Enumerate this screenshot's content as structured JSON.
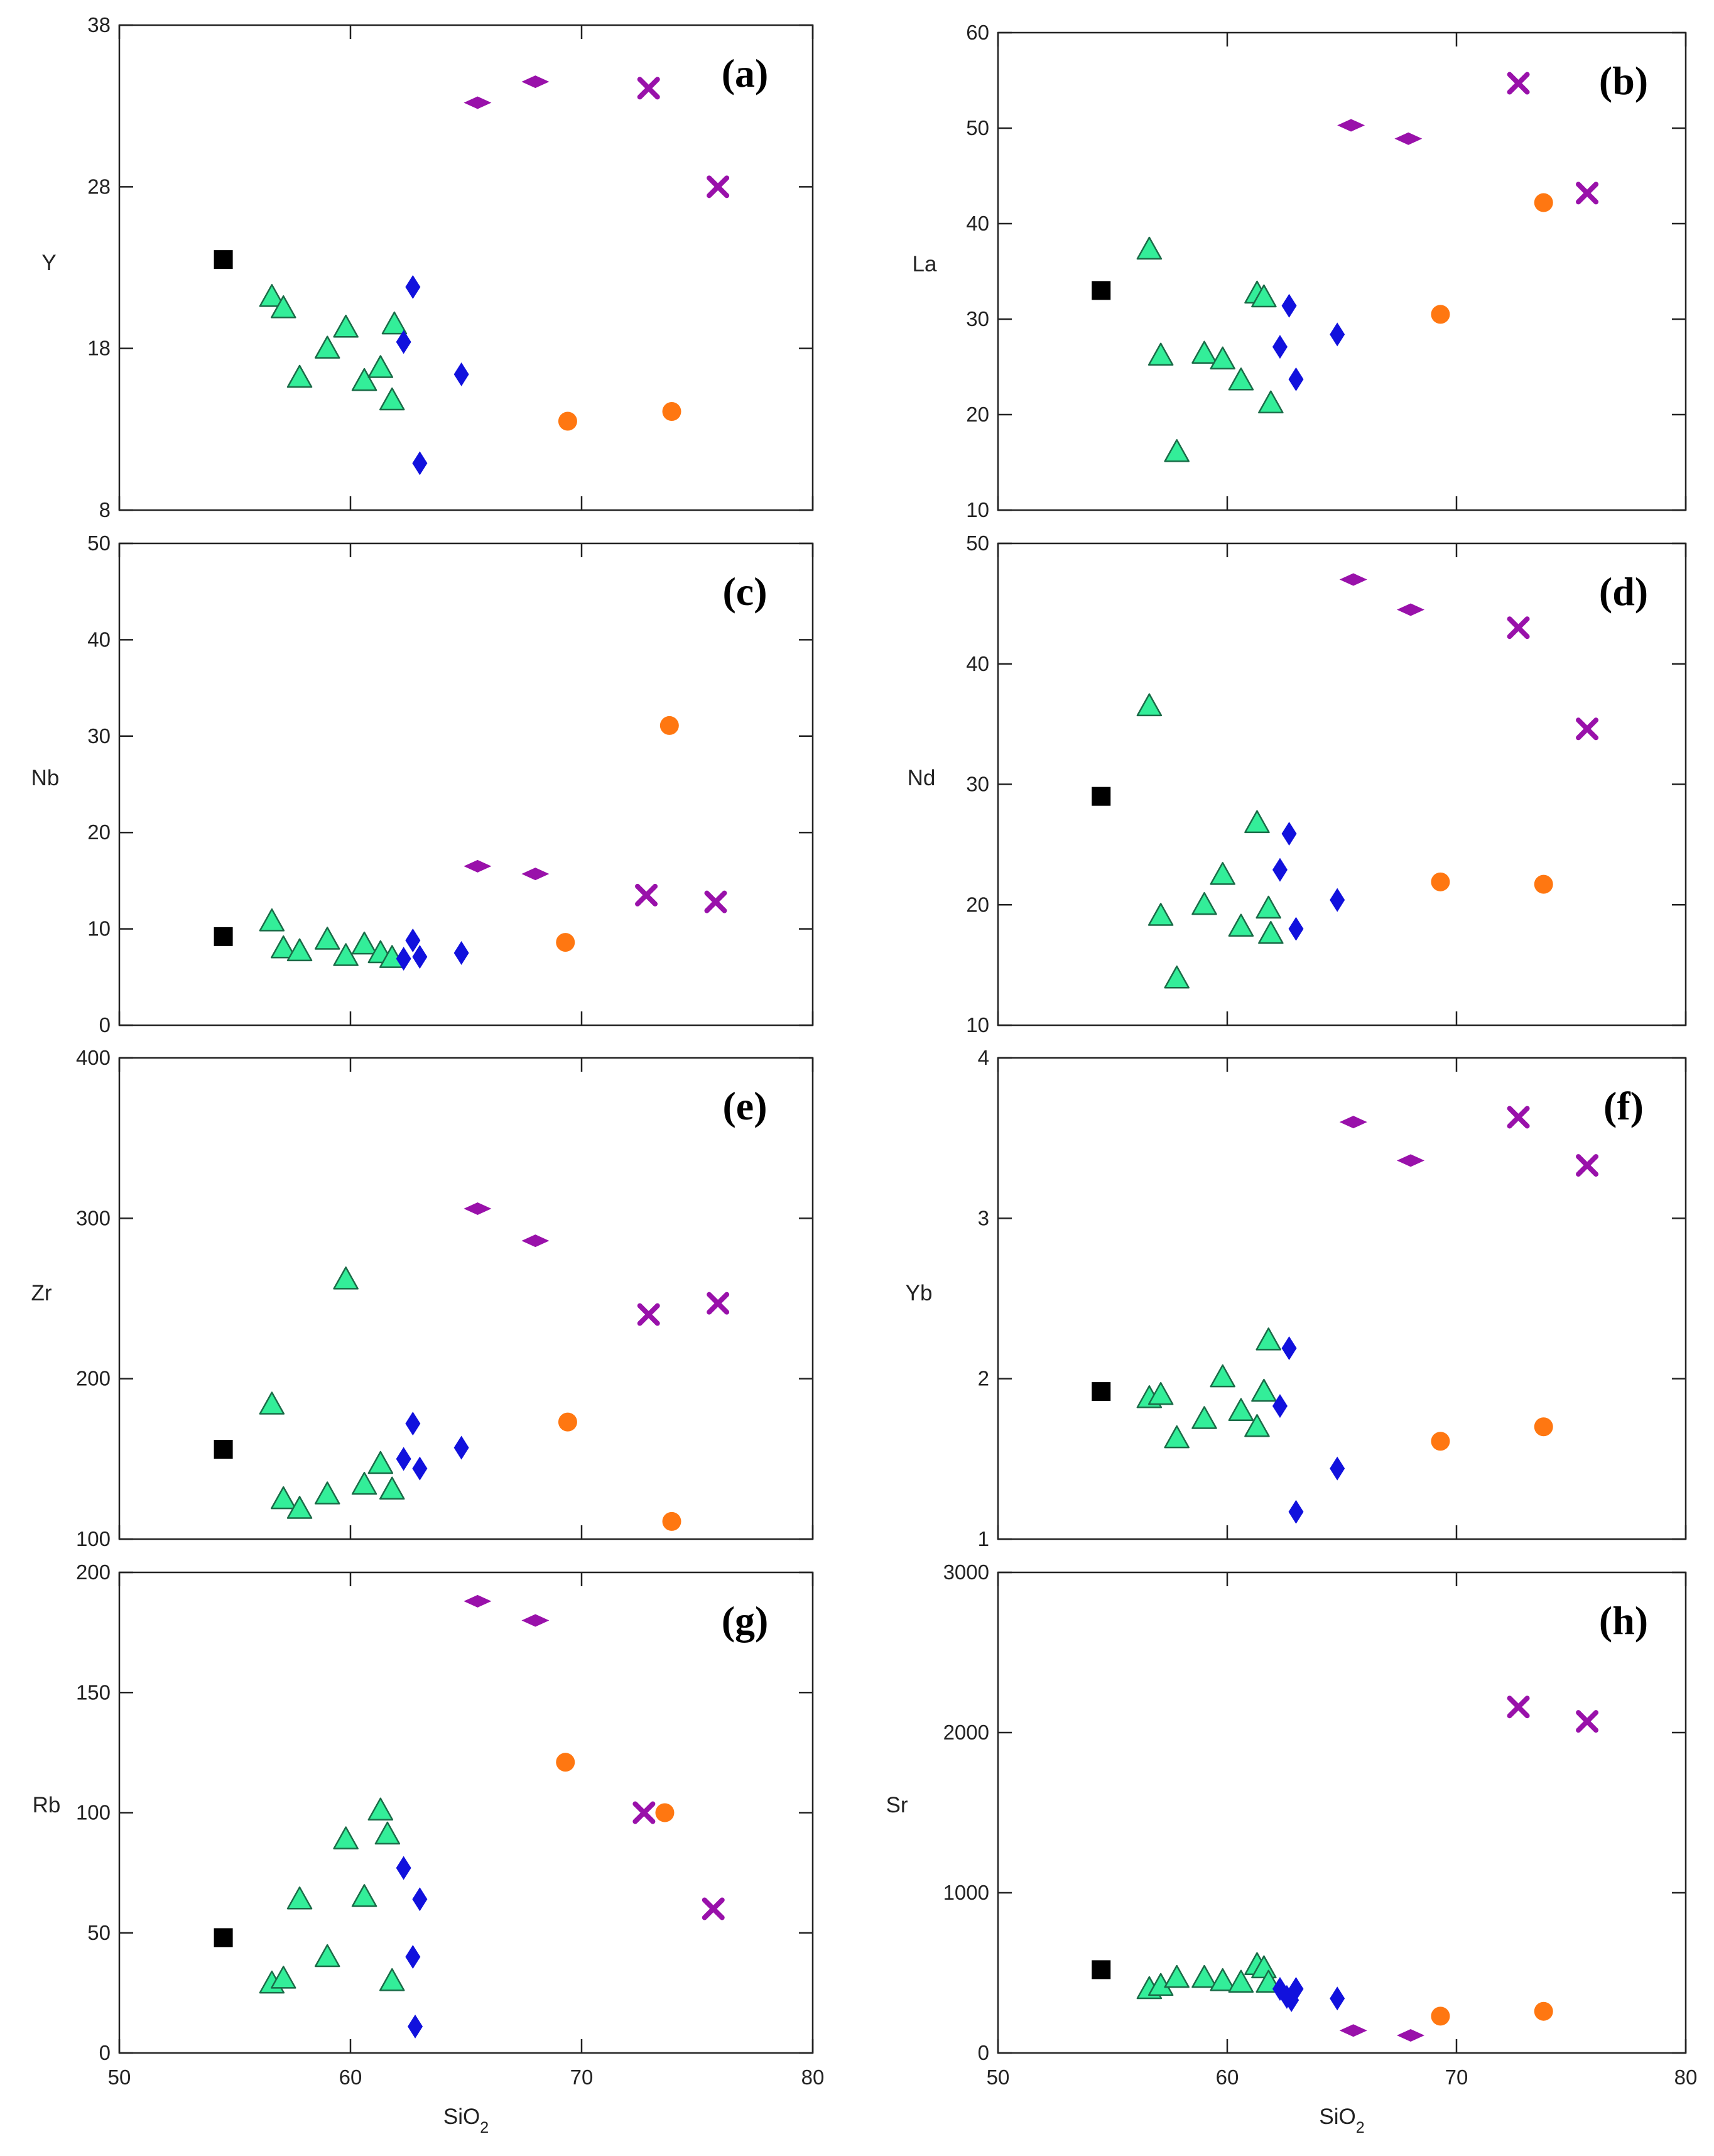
{
  "figure": {
    "description_labels": [
      "(a)",
      "(b)",
      "(c)",
      "(d)",
      "(e)",
      "(f)",
      "(g)",
      "(h)"
    ]
  },
  "colors": {
    "square": "#000000",
    "triangle": "#33ee99",
    "diamond_blue": "#1111dd",
    "circle": "#ff7711",
    "diamond_purple": "#9911aa",
    "cross": "#9911aa"
  },
  "chart_data": [
    {
      "type": "scatter",
      "panel": "(a)",
      "xlabel": "",
      "ylabel": "Y",
      "xlim": [
        50,
        80
      ],
      "ylim": [
        8,
        38
      ],
      "xticks": [],
      "yticks": [
        8,
        18,
        28,
        38
      ],
      "series": [
        {
          "name": "square",
          "points": [
            [
              54.5,
              23.5
            ]
          ]
        },
        {
          "name": "triangle",
          "points": [
            [
              56.6,
              21.2
            ],
            [
              57.1,
              20.5
            ],
            [
              57.8,
              16.2
            ],
            [
              59.0,
              18.0
            ],
            [
              59.8,
              19.3
            ],
            [
              60.6,
              16.0
            ],
            [
              61.3,
              16.8
            ],
            [
              61.8,
              14.8
            ],
            [
              61.9,
              19.5
            ]
          ]
        },
        {
          "name": "diamond_blue",
          "points": [
            [
              62.3,
              18.4
            ],
            [
              62.7,
              21.8
            ],
            [
              63.0,
              10.9
            ],
            [
              64.8,
              16.4
            ]
          ]
        },
        {
          "name": "circle",
          "points": [
            [
              69.4,
              13.5
            ],
            [
              73.9,
              14.1
            ]
          ]
        },
        {
          "name": "diamond_purple",
          "points": [
            [
              65.5,
              33.2
            ],
            [
              68.0,
              34.5
            ]
          ]
        },
        {
          "name": "cross",
          "points": [
            [
              72.9,
              34.1
            ],
            [
              75.9,
              28.0
            ]
          ]
        }
      ]
    },
    {
      "type": "scatter",
      "panel": "(b)",
      "xlabel": "",
      "ylabel": "La",
      "xlim": [
        50,
        80
      ],
      "ylim": [
        10,
        60
      ],
      "xticks": [],
      "yticks": [
        10,
        20,
        30,
        40,
        50,
        60
      ],
      "series": [
        {
          "name": "square",
          "points": [
            [
              54.5,
              33.0
            ]
          ]
        },
        {
          "name": "triangle",
          "points": [
            [
              56.6,
              37.3
            ],
            [
              57.1,
              26.2
            ],
            [
              57.8,
              16.1
            ],
            [
              59.0,
              26.4
            ],
            [
              59.8,
              25.8
            ],
            [
              60.6,
              23.6
            ],
            [
              61.3,
              32.7
            ],
            [
              61.6,
              32.3
            ],
            [
              61.9,
              21.2
            ]
          ]
        },
        {
          "name": "diamond_blue",
          "points": [
            [
              62.3,
              27.1
            ],
            [
              62.7,
              31.4
            ],
            [
              63.0,
              23.7
            ],
            [
              64.8,
              28.4
            ]
          ]
        },
        {
          "name": "circle",
          "points": [
            [
              69.3,
              30.5
            ],
            [
              73.8,
              42.2
            ]
          ]
        },
        {
          "name": "diamond_purple",
          "points": [
            [
              65.4,
              50.3
            ],
            [
              67.9,
              48.9
            ]
          ]
        },
        {
          "name": "cross",
          "points": [
            [
              72.7,
              54.7
            ],
            [
              75.7,
              43.2
            ]
          ]
        }
      ]
    },
    {
      "type": "scatter",
      "panel": "(c)",
      "xlabel": "",
      "ylabel": "Nb",
      "xlim": [
        50,
        80
      ],
      "ylim": [
        0,
        50
      ],
      "xticks": [],
      "yticks": [
        0,
        10,
        20,
        30,
        40,
        50
      ],
      "series": [
        {
          "name": "square",
          "points": [
            [
              54.5,
              9.2
            ]
          ]
        },
        {
          "name": "triangle",
          "points": [
            [
              56.6,
              10.8
            ],
            [
              57.1,
              8.0
            ],
            [
              57.8,
              7.7
            ],
            [
              59.0,
              8.9
            ],
            [
              59.8,
              7.2
            ],
            [
              60.6,
              8.4
            ],
            [
              61.3,
              7.5
            ],
            [
              61.8,
              7.0
            ]
          ]
        },
        {
          "name": "diamond_blue",
          "points": [
            [
              62.3,
              6.9
            ],
            [
              62.7,
              8.8
            ],
            [
              63.0,
              7.1
            ],
            [
              64.8,
              7.5
            ]
          ]
        },
        {
          "name": "circle",
          "points": [
            [
              69.3,
              8.6
            ],
            [
              73.8,
              31.1
            ]
          ]
        },
        {
          "name": "diamond_purple",
          "points": [
            [
              65.5,
              16.5
            ],
            [
              68.0,
              15.7
            ]
          ]
        },
        {
          "name": "cross",
          "points": [
            [
              72.8,
              13.5
            ],
            [
              75.8,
              12.8
            ]
          ]
        }
      ]
    },
    {
      "type": "scatter",
      "panel": "(d)",
      "xlabel": "",
      "ylabel": "Nd",
      "xlim": [
        50,
        80
      ],
      "ylim": [
        10,
        50
      ],
      "xticks": [],
      "yticks": [
        10,
        20,
        30,
        40,
        50
      ],
      "series": [
        {
          "name": "square",
          "points": [
            [
              54.5,
              29.0
            ]
          ]
        },
        {
          "name": "triangle",
          "points": [
            [
              56.6,
              36.5
            ],
            [
              57.1,
              19.1
            ],
            [
              57.8,
              13.9
            ],
            [
              59.0,
              20.0
            ],
            [
              59.8,
              22.5
            ],
            [
              60.6,
              18.2
            ],
            [
              61.3,
              26.8
            ],
            [
              61.8,
              19.7
            ],
            [
              61.9,
              17.6
            ]
          ]
        },
        {
          "name": "diamond_blue",
          "points": [
            [
              62.3,
              22.9
            ],
            [
              62.7,
              25.9
            ],
            [
              63.0,
              18.0
            ],
            [
              64.8,
              20.4
            ]
          ]
        },
        {
          "name": "circle",
          "points": [
            [
              69.3,
              21.9
            ],
            [
              73.8,
              21.7
            ]
          ]
        },
        {
          "name": "diamond_purple",
          "points": [
            [
              65.5,
              47.0
            ],
            [
              68.0,
              44.5
            ]
          ]
        },
        {
          "name": "cross",
          "points": [
            [
              72.7,
              43.0
            ],
            [
              75.7,
              34.6
            ]
          ]
        }
      ]
    },
    {
      "type": "scatter",
      "panel": "(e)",
      "xlabel": "",
      "ylabel": "Zr",
      "xlim": [
        50,
        80
      ],
      "ylim": [
        100,
        400
      ],
      "xticks": [],
      "yticks": [
        100,
        200,
        300,
        400
      ],
      "series": [
        {
          "name": "square",
          "points": [
            [
              54.5,
              156
            ]
          ]
        },
        {
          "name": "triangle",
          "points": [
            [
              56.6,
              184
            ],
            [
              57.1,
              125
            ],
            [
              57.8,
              119
            ],
            [
              59.0,
              128
            ],
            [
              59.8,
              262
            ],
            [
              60.6,
              134
            ],
            [
              61.3,
              147
            ],
            [
              61.8,
              131
            ]
          ]
        },
        {
          "name": "diamond_blue",
          "points": [
            [
              62.3,
              150
            ],
            [
              62.7,
              172
            ],
            [
              63.0,
              144
            ],
            [
              64.8,
              157
            ]
          ]
        },
        {
          "name": "circle",
          "points": [
            [
              69.4,
              173
            ],
            [
              73.9,
              111
            ]
          ]
        },
        {
          "name": "diamond_purple",
          "points": [
            [
              65.5,
              306
            ],
            [
              68.0,
              286
            ]
          ]
        },
        {
          "name": "cross",
          "points": [
            [
              72.9,
              240
            ],
            [
              75.9,
              247
            ]
          ]
        }
      ]
    },
    {
      "type": "scatter",
      "panel": "(f)",
      "xlabel": "",
      "ylabel": "Yb",
      "xlim": [
        50,
        80
      ],
      "ylim": [
        1,
        4
      ],
      "xticks": [],
      "yticks": [
        1,
        2,
        3,
        4
      ],
      "series": [
        {
          "name": "square",
          "points": [
            [
              54.5,
              1.92
            ]
          ]
        },
        {
          "name": "triangle",
          "points": [
            [
              56.6,
              1.88
            ],
            [
              57.1,
              1.9
            ],
            [
              57.8,
              1.63
            ],
            [
              59.0,
              1.75
            ],
            [
              59.8,
              2.01
            ],
            [
              60.6,
              1.8
            ],
            [
              61.3,
              1.7
            ],
            [
              61.6,
              1.92
            ],
            [
              61.8,
              2.24
            ]
          ]
        },
        {
          "name": "diamond_blue",
          "points": [
            [
              62.3,
              1.83
            ],
            [
              62.7,
              2.19
            ],
            [
              63.0,
              1.17
            ],
            [
              64.8,
              1.44
            ]
          ]
        },
        {
          "name": "circle",
          "points": [
            [
              69.3,
              1.61
            ],
            [
              73.8,
              1.7
            ]
          ]
        },
        {
          "name": "diamond_purple",
          "points": [
            [
              65.5,
              3.6
            ],
            [
              68.0,
              3.36
            ]
          ]
        },
        {
          "name": "cross",
          "points": [
            [
              72.7,
              3.63
            ],
            [
              75.7,
              3.33
            ]
          ]
        }
      ]
    },
    {
      "type": "scatter",
      "panel": "(g)",
      "xlabel": "SiO2",
      "ylabel": "Rb",
      "xlim": [
        50,
        80
      ],
      "ylim": [
        0,
        200
      ],
      "xticks": [
        50,
        60,
        70,
        80
      ],
      "yticks": [
        0,
        50,
        100,
        150,
        200
      ],
      "series": [
        {
          "name": "square",
          "points": [
            [
              54.5,
              48
            ]
          ]
        },
        {
          "name": "triangle",
          "points": [
            [
              56.6,
              29
            ],
            [
              57.1,
              31
            ],
            [
              57.8,
              64
            ],
            [
              59.0,
              40
            ],
            [
              59.8,
              89
            ],
            [
              60.6,
              65
            ],
            [
              61.3,
              101
            ],
            [
              61.6,
              91
            ],
            [
              61.8,
              30
            ]
          ]
        },
        {
          "name": "diamond_blue",
          "points": [
            [
              62.3,
              77
            ],
            [
              62.7,
              40
            ],
            [
              63.0,
              64
            ],
            [
              62.8,
              11
            ]
          ]
        },
        {
          "name": "circle",
          "points": [
            [
              69.3,
              121
            ],
            [
              73.6,
              100
            ]
          ]
        },
        {
          "name": "diamond_purple",
          "points": [
            [
              65.5,
              188
            ],
            [
              68.0,
              180
            ]
          ]
        },
        {
          "name": "cross",
          "points": [
            [
              72.7,
              100
            ],
            [
              75.7,
              60
            ]
          ]
        }
      ]
    },
    {
      "type": "scatter",
      "panel": "(h)",
      "xlabel": "SiO2",
      "ylabel": "Sr",
      "xlim": [
        50,
        80
      ],
      "ylim": [
        0,
        3000
      ],
      "xticks": [
        50,
        60,
        70,
        80
      ],
      "yticks": [
        0,
        1000,
        2000,
        3000
      ],
      "series": [
        {
          "name": "square",
          "points": [
            [
              54.5,
              520
            ]
          ]
        },
        {
          "name": "triangle",
          "points": [
            [
              56.6,
              400
            ],
            [
              57.1,
              420
            ],
            [
              57.8,
              470
            ],
            [
              59.0,
              470
            ],
            [
              59.8,
              450
            ],
            [
              60.6,
              440
            ],
            [
              61.3,
              550
            ],
            [
              61.6,
              530
            ],
            [
              61.8,
              440
            ]
          ]
        },
        {
          "name": "diamond_blue",
          "points": [
            [
              62.3,
              400
            ],
            [
              62.6,
              350
            ],
            [
              62.8,
              330
            ],
            [
              63.0,
              400
            ],
            [
              64.8,
              340
            ]
          ]
        },
        {
          "name": "circle",
          "points": [
            [
              69.3,
              230
            ],
            [
              73.8,
              260
            ]
          ]
        },
        {
          "name": "diamond_purple",
          "points": [
            [
              65.5,
              140
            ],
            [
              68.0,
              110
            ]
          ]
        },
        {
          "name": "cross",
          "points": [
            [
              72.7,
              2160
            ],
            [
              75.7,
              2070
            ]
          ]
        }
      ]
    }
  ]
}
